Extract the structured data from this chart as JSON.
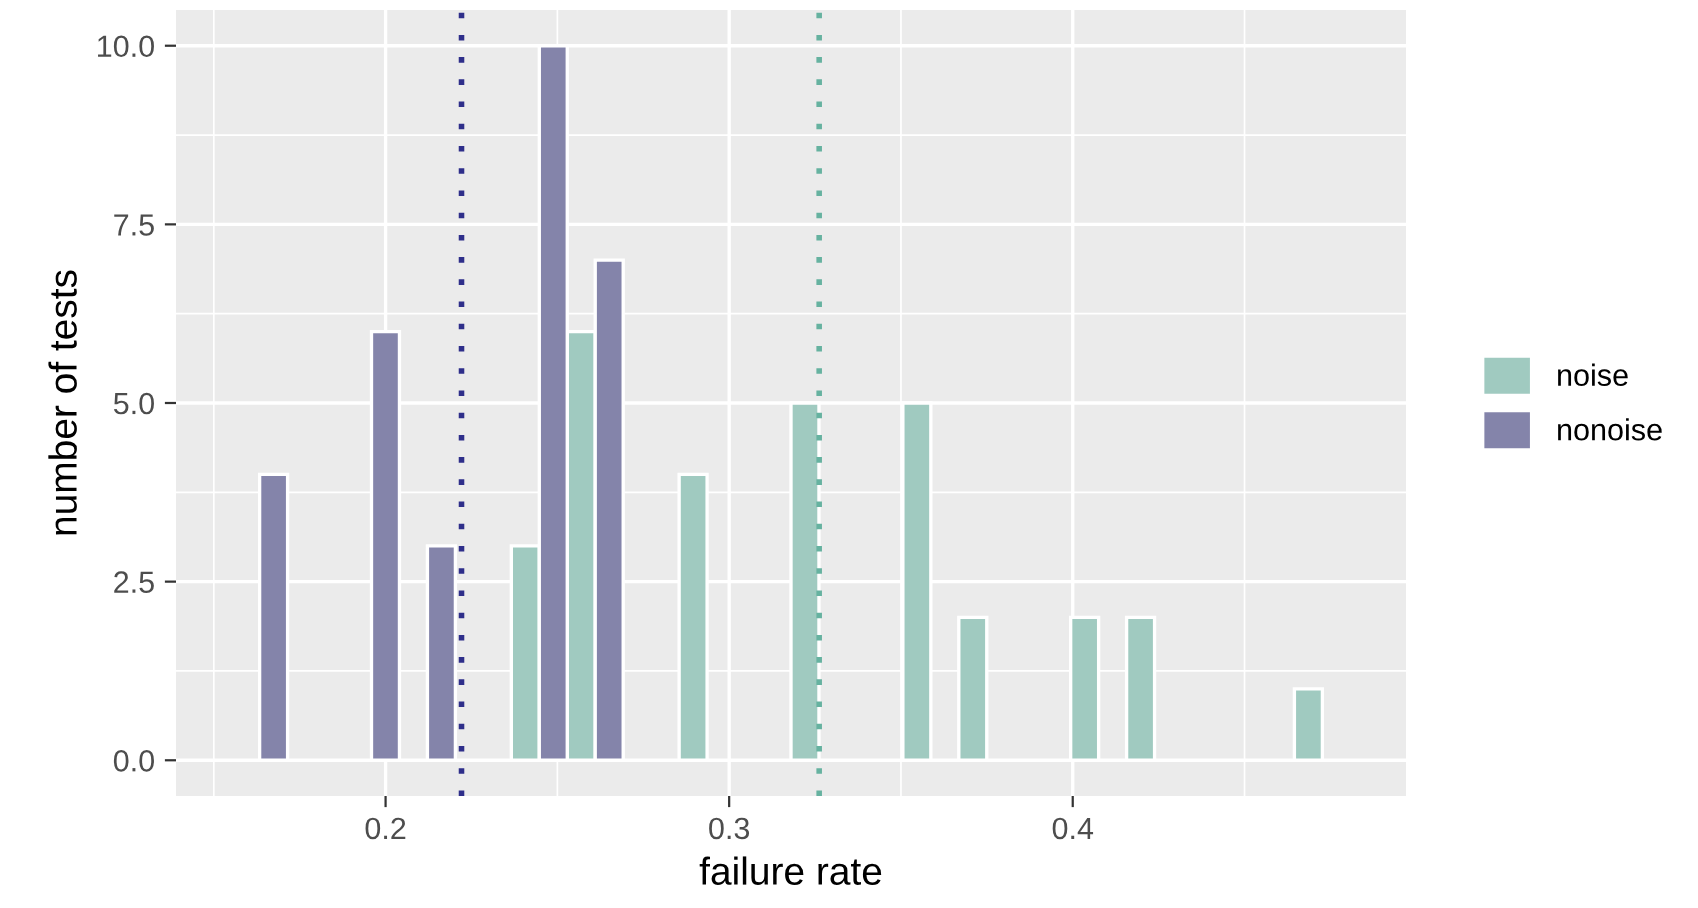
{
  "chart_data": {
    "type": "histogram",
    "xlabel": "failure rate",
    "ylabel": "number of tests",
    "bins": [
      0.1552,
      0.16334,
      0.17148,
      0.17962,
      0.18776,
      0.1959,
      0.20404,
      0.21218,
      0.22032,
      0.22846,
      0.2366,
      0.24474,
      0.25288,
      0.26102,
      0.26916,
      0.2773,
      0.28544,
      0.29358,
      0.30172,
      0.30986,
      0.318,
      0.32614,
      0.33428,
      0.34242,
      0.35056,
      0.3587,
      0.36684,
      0.37498,
      0.38312,
      0.39126,
      0.3994,
      0.40754,
      0.41568,
      0.42382,
      0.43196,
      0.4401,
      0.44824,
      0.45638,
      0.46452,
      0.47266,
      0.4808
    ],
    "series": [
      {
        "name": "noise",
        "color": "#a0cac0",
        "values": [
          0,
          0,
          0,
          0,
          0,
          0,
          0,
          0,
          0,
          0,
          3,
          0,
          6,
          0,
          0,
          0,
          4,
          0,
          0,
          0,
          5,
          0,
          0,
          0,
          5,
          0,
          2,
          0,
          0,
          0,
          2,
          0,
          2,
          0,
          0,
          0,
          0,
          0,
          1,
          0
        ]
      },
      {
        "name": "nonoise",
        "color": "#8484aa",
        "values": [
          0,
          4,
          0,
          0,
          0,
          6,
          0,
          3,
          0,
          0,
          0,
          10,
          0,
          7,
          0,
          0,
          0,
          0,
          0,
          0,
          0,
          0,
          0,
          0,
          0,
          0,
          0,
          0,
          0,
          0,
          0,
          0,
          0,
          0,
          0,
          0,
          0,
          0,
          0,
          0
        ]
      }
    ],
    "ref_lines": [
      {
        "axis": "x",
        "value": 0.2221,
        "color": "#2e2e8a",
        "line_style": "dotted"
      },
      {
        "axis": "x",
        "value": 0.3262,
        "color": "#66b2a0",
        "line_style": "dotted"
      }
    ],
    "xlim": [
      0.139,
      0.497
    ],
    "xticks": [
      0.2,
      0.3,
      0.4
    ],
    "ylim": [
      -0.5,
      10.5
    ],
    "yticks": [
      {
        "value": 0,
        "label": "0.0"
      },
      {
        "value": 2.5,
        "label": "2.5"
      },
      {
        "value": 5,
        "label": "5.0"
      },
      {
        "value": 7.5,
        "label": "7.5"
      },
      {
        "value": 10,
        "label": "10.0"
      }
    ],
    "grid": true,
    "legend": "right"
  }
}
